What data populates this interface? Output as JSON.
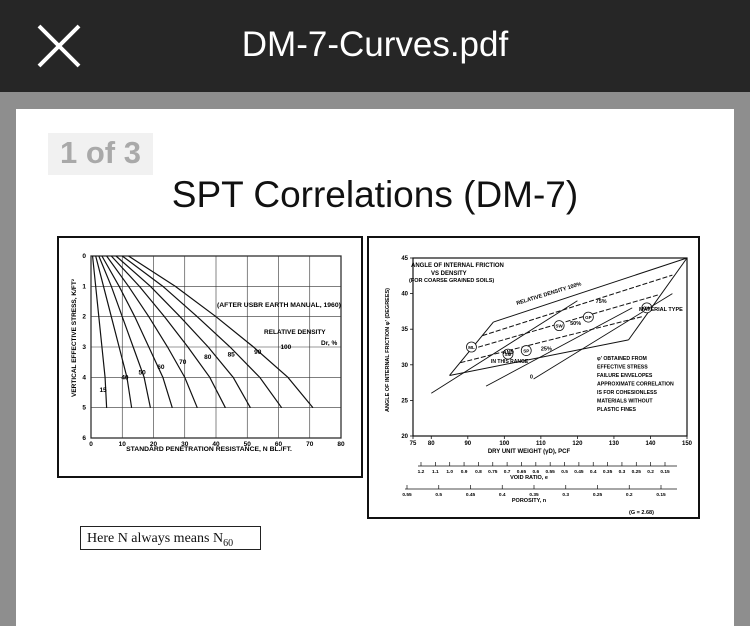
{
  "viewer": {
    "title": "DM-7-Curves.pdf",
    "page_indicator": "1 of 3",
    "close_icon": "close-icon"
  },
  "slide": {
    "title": "SPT Correlations (DM-7)",
    "note_text": "Here N always means N",
    "note_subscript": "60"
  },
  "left_chart": {
    "chart_data": {
      "type": "line",
      "xlabel": "STANDARD PENETRATION RESISTANCE, N BL./FT.",
      "ylabel": "VERTICAL EFFECTIVE STRESS, K/FT²",
      "xlim": [
        0,
        80
      ],
      "ylim": [
        0,
        6
      ],
      "x_ticks": [
        "0",
        "10",
        "20",
        "30",
        "40",
        "50",
        "60",
        "70",
        "80"
      ],
      "y_ticks": [
        "0",
        "1",
        "2",
        "3",
        "4",
        "5",
        "6"
      ],
      "source_note": "(AFTER USBR EARTH MANUAL, 1960)",
      "curve_family_label": "RELATIVE DENSITY",
      "curve_family_unit": "Dr, %",
      "density_labels": [
        "15",
        "40",
        "50",
        "60",
        "70",
        "80",
        "85",
        "90",
        "100"
      ],
      "series": [
        {
          "name": "15",
          "x": [
            0.5,
            1.5,
            2.5,
            3.5,
            4.5,
            5
          ],
          "y": [
            0,
            1,
            2,
            3,
            4,
            5
          ]
        },
        {
          "name": "40",
          "x": [
            1.5,
            4,
            6.5,
            9,
            11.5,
            13
          ],
          "y": [
            0,
            1,
            2,
            3,
            4,
            5
          ]
        },
        {
          "name": "50",
          "x": [
            2.5,
            6.5,
            10,
            13.5,
            17,
            19
          ],
          "y": [
            0,
            1,
            2,
            3,
            4,
            5
          ]
        },
        {
          "name": "60",
          "x": [
            3.5,
            9,
            14,
            18.5,
            23,
            26
          ],
          "y": [
            0,
            1,
            2,
            3,
            4,
            5
          ]
        },
        {
          "name": "70",
          "x": [
            5,
            12,
            18.5,
            24.5,
            30,
            34
          ],
          "y": [
            0,
            1,
            2,
            3,
            4,
            5
          ]
        },
        {
          "name": "80",
          "x": [
            6.5,
            15.5,
            23.5,
            31,
            38,
            43
          ],
          "y": [
            0,
            1,
            2,
            3,
            4,
            5
          ]
        },
        {
          "name": "85",
          "x": [
            8,
            19,
            28.5,
            37.5,
            45.5,
            51
          ],
          "y": [
            0,
            1,
            2,
            3,
            4,
            5
          ]
        },
        {
          "name": "90",
          "x": [
            10,
            23,
            34,
            44.5,
            54,
            61
          ],
          "y": [
            0,
            1,
            2,
            3,
            4,
            5
          ]
        },
        {
          "name": "100",
          "x": [
            12,
            27,
            40,
            52,
            63,
            71
          ],
          "y": [
            0,
            1,
            2,
            3,
            4,
            5
          ]
        }
      ]
    }
  },
  "right_chart": {
    "chart_data": {
      "type": "line",
      "title": "ANGLE OF INTERNAL FRICTION",
      "subtitle": "VS DENSITY",
      "subtitle2": "(FOR COARSE GRAINED SOILS)",
      "xlabel": "DRY UNIT WEIGHT (γD), PCF",
      "ylabel": "ANGLE OF INTERNAL FRICTION φ' (DEGREES)",
      "xlim": [
        75,
        150
      ],
      "ylim": [
        20,
        45
      ],
      "x_ticks": [
        "75",
        "80",
        "90",
        "100",
        "110",
        "120",
        "130",
        "140",
        "150"
      ],
      "y_ticks": [
        "20",
        "25",
        "30",
        "35",
        "40",
        "45"
      ],
      "void_ratio_label": "VOID RATIO, e",
      "void_ratio_ticks": [
        "1.2",
        "1.1",
        "1.0",
        "0.9",
        "0.8",
        "0.75",
        "0.7",
        "0.65",
        "0.6",
        "0.55",
        "0.5",
        "0.45",
        "0.4",
        "0.35",
        "0.3",
        "0.25",
        "0.2",
        "0.15"
      ],
      "porosity_label": "POROSITY, n",
      "porosity_ticks": [
        "0.55",
        "0.5",
        "0.45",
        "0.4",
        "0.35",
        "0.3",
        "0.25",
        "0.2",
        "0.15"
      ],
      "specific_gravity_note": "(G = 2.68)",
      "relative_density_label": "RELATIVE DENSITY 100%",
      "density_marks": [
        "75%",
        "50%",
        "25%",
        "0"
      ],
      "material_type_label": "MATERIAL TYPE",
      "material_types": [
        "GW",
        "GP",
        "SW",
        "ML",
        "SM",
        "SP"
      ],
      "material_connector": "AND",
      "range_note": "IN THIS RANGE",
      "annotation_lines": [
        "φ' OBTAINED FROM",
        "EFFECTIVE STRESS",
        "FAILURE ENVELOPES",
        "APPROXIMATE CORRELATION",
        "IS FOR COHESIONLESS",
        "MATERIALS WITHOUT",
        "PLASTIC FINES"
      ],
      "series": [
        {
          "name": "0%",
          "x": [
            85,
            134
          ],
          "y": [
            28.5,
            33.5
          ]
        },
        {
          "name": "25%",
          "x": [
            88,
            138
          ],
          "y": [
            30.3,
            36.8
          ]
        },
        {
          "name": "50%",
          "x": [
            91,
            142
          ],
          "y": [
            32.2,
            39.8
          ]
        },
        {
          "name": "75%",
          "x": [
            94,
            146
          ],
          "y": [
            34.1,
            42.6
          ]
        },
        {
          "name": "100%",
          "x": [
            97,
            150
          ],
          "y": [
            36,
            45
          ]
        }
      ]
    }
  }
}
